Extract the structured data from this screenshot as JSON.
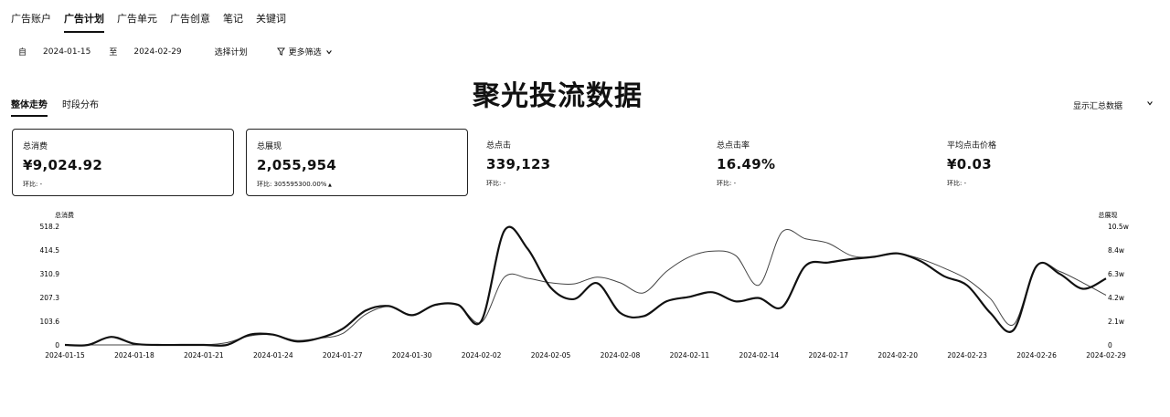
{
  "nav": {
    "tabs": [
      {
        "label": "广告账户",
        "active": false
      },
      {
        "label": "广告计划",
        "active": true
      },
      {
        "label": "广告单元",
        "active": false
      },
      {
        "label": "广告创意",
        "active": false
      },
      {
        "label": "笔记",
        "active": false
      },
      {
        "label": "关键词",
        "active": false
      }
    ]
  },
  "filter": {
    "from_prefix": "自",
    "start_date": "2024-01-15",
    "to_label": "至",
    "end_date": "2024-02-29",
    "select_plan": "选择计划",
    "more_filters": "更多筛选"
  },
  "overlay_title": "聚光投流数据",
  "subtabs": [
    {
      "label": "整体走势",
      "active": true
    },
    {
      "label": "时段分布",
      "active": false
    }
  ],
  "summary_select": {
    "label": "显示汇总数据",
    "icon": "chevron-down-icon"
  },
  "cards": [
    {
      "label": "总消费",
      "value": "¥9,024.92",
      "compare": "环比: -",
      "selected": true
    },
    {
      "label": "总展现",
      "value": "2,055,954",
      "compare": "环比: 305595300.00%",
      "trend": "up",
      "selected": true
    },
    {
      "label": "总点击",
      "value": "339,123",
      "compare": "环比: -",
      "selected": false
    },
    {
      "label": "总点击率",
      "value": "16.49%",
      "compare": "环比: -",
      "selected": false
    },
    {
      "label": "平均点击价格",
      "value": "¥0.03",
      "compare": "环比: -",
      "selected": false
    }
  ],
  "chart_data": {
    "type": "line",
    "left_axis_label": "总消费",
    "right_axis_label": "总展现",
    "y_left_ticks": [
      "518.2",
      "414.5",
      "310.9",
      "207.3",
      "103.6",
      "0"
    ],
    "y_right_ticks": [
      "10.5w",
      "8.4w",
      "6.3w",
      "4.2w",
      "2.1w",
      "0"
    ],
    "ylim_left": [
      0,
      518.2
    ],
    "ylim_right": [
      0,
      105000
    ],
    "x_ticks": [
      "2024-01-15",
      "2024-01-18",
      "2024-01-21",
      "2024-01-24",
      "2024-01-27",
      "2024-01-30",
      "2024-02-02",
      "2024-02-05",
      "2024-02-08",
      "2024-02-11",
      "2024-02-14",
      "2024-02-17",
      "2024-02-20",
      "2024-02-23",
      "2024-02-26",
      "2024-02-29"
    ],
    "x": [
      "2024-01-15",
      "2024-01-16",
      "2024-01-17",
      "2024-01-18",
      "2024-01-19",
      "2024-01-20",
      "2024-01-21",
      "2024-01-22",
      "2024-01-23",
      "2024-01-24",
      "2024-01-25",
      "2024-01-26",
      "2024-01-27",
      "2024-01-28",
      "2024-01-29",
      "2024-01-30",
      "2024-01-31",
      "2024-02-01",
      "2024-02-02",
      "2024-02-03",
      "2024-02-04",
      "2024-02-05",
      "2024-02-06",
      "2024-02-07",
      "2024-02-08",
      "2024-02-09",
      "2024-02-10",
      "2024-02-11",
      "2024-02-12",
      "2024-02-13",
      "2024-02-14",
      "2024-02-15",
      "2024-02-16",
      "2024-02-17",
      "2024-02-18",
      "2024-02-19",
      "2024-02-20",
      "2024-02-21",
      "2024-02-22",
      "2024-02-23",
      "2024-02-24",
      "2024-02-25",
      "2024-02-26",
      "2024-02-27",
      "2024-02-28",
      "2024-02-29"
    ],
    "series": [
      {
        "name": "总消费",
        "axis": "left",
        "color": "#111111",
        "width": 2.2,
        "values": [
          0,
          0,
          35,
          5,
          0,
          0,
          0,
          0,
          45,
          45,
          15,
          30,
          70,
          150,
          170,
          130,
          175,
          175,
          105,
          500,
          420,
          250,
          200,
          270,
          140,
          125,
          190,
          210,
          230,
          190,
          205,
          165,
          345,
          360,
          375,
          385,
          400,
          365,
          300,
          260,
          140,
          65,
          345,
          310,
          245,
          290
        ]
      },
      {
        "name": "总展现",
        "axis": "right",
        "color": "#444444",
        "width": 1.0,
        "values": [
          0,
          0,
          0,
          0,
          0,
          0,
          0,
          2000,
          8000,
          9000,
          4000,
          6000,
          10000,
          27000,
          34000,
          26000,
          35000,
          35000,
          20000,
          60000,
          59000,
          55000,
          54000,
          60000,
          55000,
          46000,
          65000,
          78000,
          83000,
          79000,
          53000,
          100000,
          94000,
          90000,
          79000,
          78000,
          81000,
          76000,
          68000,
          58000,
          41000,
          18000,
          70000,
          65000,
          55000,
          44000
        ]
      }
    ]
  }
}
